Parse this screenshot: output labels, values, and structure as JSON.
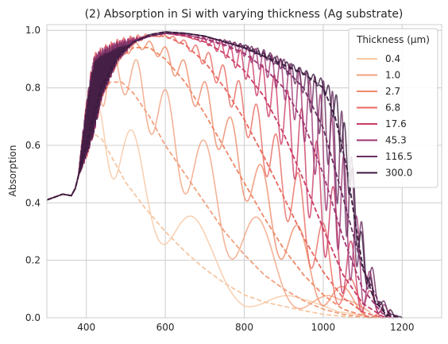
{
  "chart_data": {
    "type": "line",
    "title": "(2) Absorption in Si with varying thickness (Ag substrate)",
    "xlabel": "",
    "ylabel": "Absorption",
    "xlim": [
      300,
      1300
    ],
    "ylim": [
      0,
      1.02
    ],
    "x_ticks": [
      400,
      600,
      800,
      1000,
      1200
    ],
    "y_ticks": [
      0.0,
      0.2,
      0.4,
      0.6,
      0.8,
      1.0
    ],
    "grid": true,
    "legend": {
      "title": "Thickness (μm)",
      "placement": "top-right"
    },
    "series": [
      {
        "name": "0.4",
        "color": "#f6c7a3",
        "smooth": [
          [
            300,
            0.41
          ],
          [
            340,
            0.43
          ],
          [
            362,
            0.425
          ],
          [
            372,
            0.45
          ],
          [
            390,
            0.55
          ],
          [
            410,
            0.62
          ],
          [
            420,
            0.64
          ],
          [
            440,
            0.62
          ],
          [
            460,
            0.57
          ],
          [
            500,
            0.47
          ],
          [
            550,
            0.38
          ],
          [
            600,
            0.3
          ],
          [
            650,
            0.23
          ],
          [
            700,
            0.17
          ],
          [
            750,
            0.12
          ],
          [
            800,
            0.08
          ],
          [
            850,
            0.055
          ],
          [
            900,
            0.04
          ],
          [
            950,
            0.025
          ],
          [
            1000,
            0.012
          ],
          [
            1050,
            0.005
          ],
          [
            1100,
            0.0
          ]
        ],
        "peaks": [
          [
            420,
            0.8
          ],
          [
            445,
            0.85
          ],
          [
            480,
            0.82
          ],
          [
            540,
            0.66
          ],
          [
            610,
            0.5
          ],
          [
            710,
            0.34
          ],
          [
            840,
            0.19
          ],
          [
            950,
            0.08
          ],
          [
            1040,
            0.03
          ]
        ]
      },
      {
        "name": "1.0",
        "color": "#f1a17e",
        "smooth": [
          [
            300,
            0.41
          ],
          [
            340,
            0.43
          ],
          [
            362,
            0.425
          ],
          [
            372,
            0.45
          ],
          [
            390,
            0.55
          ],
          [
            410,
            0.65
          ],
          [
            430,
            0.75
          ],
          [
            460,
            0.82
          ],
          [
            490,
            0.82
          ],
          [
            520,
            0.78
          ],
          [
            560,
            0.7
          ],
          [
            600,
            0.6
          ],
          [
            650,
            0.5
          ],
          [
            700,
            0.4
          ],
          [
            750,
            0.3
          ],
          [
            800,
            0.22
          ],
          [
            850,
            0.15
          ],
          [
            900,
            0.1
          ],
          [
            950,
            0.06
          ],
          [
            1000,
            0.03
          ],
          [
            1050,
            0.012
          ],
          [
            1100,
            0.003
          ],
          [
            1120,
            0.0
          ]
        ],
        "peaks": [
          [
            460,
            0.96
          ],
          [
            530,
            0.94
          ],
          [
            600,
            0.86
          ],
          [
            680,
            0.73
          ],
          [
            760,
            0.56
          ],
          [
            850,
            0.38
          ],
          [
            950,
            0.2
          ],
          [
            1040,
            0.08
          ]
        ]
      },
      {
        "name": "2.7",
        "color": "#ee8a66",
        "smooth": [
          [
            300,
            0.41
          ],
          [
            340,
            0.43
          ],
          [
            362,
            0.425
          ],
          [
            372,
            0.45
          ],
          [
            390,
            0.55
          ],
          [
            410,
            0.66
          ],
          [
            440,
            0.8
          ],
          [
            480,
            0.9
          ],
          [
            520,
            0.94
          ],
          [
            560,
            0.94
          ],
          [
            600,
            0.9
          ],
          [
            650,
            0.82
          ],
          [
            700,
            0.71
          ],
          [
            750,
            0.59
          ],
          [
            800,
            0.47
          ],
          [
            850,
            0.35
          ],
          [
            900,
            0.24
          ],
          [
            950,
            0.15
          ],
          [
            1000,
            0.08
          ],
          [
            1050,
            0.03
          ],
          [
            1100,
            0.008
          ],
          [
            1140,
            0.0
          ]
        ],
        "peaks": [
          [
            500,
            0.96
          ],
          [
            560,
            0.97
          ],
          [
            620,
            0.95
          ],
          [
            700,
            0.86
          ],
          [
            780,
            0.72
          ],
          [
            860,
            0.55
          ],
          [
            950,
            0.34
          ],
          [
            1040,
            0.16
          ],
          [
            1100,
            0.05
          ]
        ]
      },
      {
        "name": "6.8",
        "color": "#e8685e",
        "smooth": [
          [
            300,
            0.41
          ],
          [
            340,
            0.43
          ],
          [
            362,
            0.425
          ],
          [
            372,
            0.45
          ],
          [
            390,
            0.55
          ],
          [
            410,
            0.66
          ],
          [
            440,
            0.81
          ],
          [
            480,
            0.91
          ],
          [
            520,
            0.96
          ],
          [
            560,
            0.98
          ],
          [
            600,
            0.98
          ],
          [
            650,
            0.95
          ],
          [
            700,
            0.89
          ],
          [
            750,
            0.8
          ],
          [
            800,
            0.69
          ],
          [
            850,
            0.56
          ],
          [
            900,
            0.42
          ],
          [
            950,
            0.28
          ],
          [
            1000,
            0.16
          ],
          [
            1050,
            0.07
          ],
          [
            1100,
            0.02
          ],
          [
            1150,
            0.0
          ]
        ],
        "peaks": [
          [
            600,
            0.99
          ],
          [
            700,
            0.95
          ],
          [
            780,
            0.87
          ],
          [
            860,
            0.74
          ],
          [
            940,
            0.56
          ],
          [
            1020,
            0.33
          ],
          [
            1080,
            0.14
          ],
          [
            1130,
            0.04
          ]
        ]
      },
      {
        "name": "17.6",
        "color": "#cc3b64",
        "smooth": [
          [
            300,
            0.41
          ],
          [
            340,
            0.43
          ],
          [
            362,
            0.425
          ],
          [
            372,
            0.45
          ],
          [
            390,
            0.55
          ],
          [
            410,
            0.66
          ],
          [
            440,
            0.81
          ],
          [
            480,
            0.91
          ],
          [
            520,
            0.96
          ],
          [
            560,
            0.98
          ],
          [
            600,
            0.99
          ],
          [
            650,
            0.98
          ],
          [
            700,
            0.96
          ],
          [
            750,
            0.92
          ],
          [
            800,
            0.86
          ],
          [
            850,
            0.77
          ],
          [
            900,
            0.64
          ],
          [
            950,
            0.48
          ],
          [
            1000,
            0.31
          ],
          [
            1050,
            0.15
          ],
          [
            1100,
            0.05
          ],
          [
            1150,
            0.005
          ],
          [
            1170,
            0.0
          ]
        ],
        "peaks": [
          [
            700,
            0.98
          ],
          [
            800,
            0.95
          ],
          [
            880,
            0.89
          ],
          [
            950,
            0.8
          ],
          [
            1000,
            0.65
          ],
          [
            1050,
            0.42
          ],
          [
            1100,
            0.18
          ],
          [
            1140,
            0.05
          ]
        ]
      },
      {
        "name": "45.3",
        "color": "#9e3270",
        "smooth": [
          [
            300,
            0.41
          ],
          [
            340,
            0.43
          ],
          [
            362,
            0.425
          ],
          [
            372,
            0.45
          ],
          [
            390,
            0.55
          ],
          [
            410,
            0.66
          ],
          [
            440,
            0.81
          ],
          [
            480,
            0.91
          ],
          [
            520,
            0.96
          ],
          [
            560,
            0.98
          ],
          [
            600,
            0.99
          ],
          [
            650,
            0.985
          ],
          [
            700,
            0.97
          ],
          [
            750,
            0.95
          ],
          [
            800,
            0.92
          ],
          [
            850,
            0.87
          ],
          [
            900,
            0.8
          ],
          [
            950,
            0.68
          ],
          [
            1000,
            0.5
          ],
          [
            1050,
            0.28
          ],
          [
            1100,
            0.1
          ],
          [
            1150,
            0.015
          ],
          [
            1180,
            0.0
          ]
        ],
        "peaks": [
          [
            700,
            0.98
          ],
          [
            800,
            0.96
          ],
          [
            900,
            0.93
          ],
          [
            960,
            0.9
          ],
          [
            1010,
            0.84
          ],
          [
            1050,
            0.68
          ],
          [
            1090,
            0.38
          ],
          [
            1130,
            0.12
          ],
          [
            1170,
            0.02
          ]
        ]
      },
      {
        "name": "116.5",
        "color": "#6a2c60",
        "smooth": [
          [
            300,
            0.41
          ],
          [
            340,
            0.43
          ],
          [
            362,
            0.425
          ],
          [
            372,
            0.45
          ],
          [
            390,
            0.55
          ],
          [
            410,
            0.66
          ],
          [
            440,
            0.81
          ],
          [
            480,
            0.91
          ],
          [
            520,
            0.96
          ],
          [
            560,
            0.98
          ],
          [
            600,
            0.99
          ],
          [
            650,
            0.99
          ],
          [
            700,
            0.98
          ],
          [
            750,
            0.96
          ],
          [
            800,
            0.94
          ],
          [
            850,
            0.91
          ],
          [
            900,
            0.87
          ],
          [
            950,
            0.8
          ],
          [
            1000,
            0.66
          ],
          [
            1050,
            0.42
          ],
          [
            1100,
            0.17
          ],
          [
            1150,
            0.03
          ],
          [
            1190,
            0.0
          ]
        ],
        "peaks": [
          [
            750,
            0.97
          ],
          [
            850,
            0.94
          ],
          [
            950,
            0.88
          ],
          [
            1000,
            0.88
          ],
          [
            1040,
            0.86
          ],
          [
            1070,
            0.66
          ],
          [
            1100,
            0.36
          ],
          [
            1140,
            0.1
          ],
          [
            1180,
            0.01
          ]
        ]
      },
      {
        "name": "300.0",
        "color": "#3a1b3e",
        "smooth": [
          [
            300,
            0.41
          ],
          [
            340,
            0.43
          ],
          [
            362,
            0.425
          ],
          [
            372,
            0.45
          ],
          [
            390,
            0.55
          ],
          [
            410,
            0.66
          ],
          [
            440,
            0.81
          ],
          [
            480,
            0.91
          ],
          [
            520,
            0.96
          ],
          [
            560,
            0.985
          ],
          [
            600,
            0.995
          ],
          [
            650,
            0.99
          ],
          [
            700,
            0.98
          ],
          [
            750,
            0.96
          ],
          [
            800,
            0.94
          ],
          [
            850,
            0.91
          ],
          [
            900,
            0.88
          ],
          [
            950,
            0.85
          ],
          [
            1000,
            0.8
          ],
          [
            1030,
            0.7
          ],
          [
            1060,
            0.52
          ],
          [
            1080,
            0.34
          ],
          [
            1100,
            0.18
          ],
          [
            1130,
            0.06
          ],
          [
            1160,
            0.01
          ],
          [
            1200,
            0.0
          ]
        ],
        "peaks": [
          [
            800,
            0.95
          ],
          [
            900,
            0.9
          ],
          [
            1000,
            0.84
          ],
          [
            1040,
            0.8
          ],
          [
            1070,
            0.62
          ],
          [
            1100,
            0.3
          ],
          [
            1130,
            0.08
          ],
          [
            1200,
            0.0
          ]
        ]
      }
    ]
  }
}
